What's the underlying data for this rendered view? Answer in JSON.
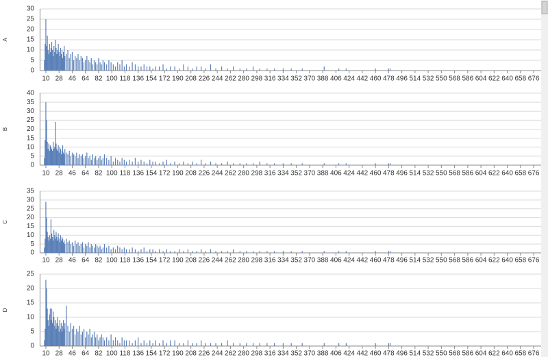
{
  "chart_data": [
    {
      "type": "bar",
      "ylabel": "A",
      "color": "#5b80b8",
      "grid": true,
      "xlim": [
        2,
        688
      ],
      "ylim": [
        0,
        30
      ],
      "yticks": [
        0,
        5,
        10,
        15,
        20,
        25,
        30
      ],
      "xticks": [
        10,
        28,
        46,
        64,
        82,
        100,
        118,
        136,
        154,
        172,
        190,
        208,
        226,
        244,
        262,
        280,
        298,
        316,
        334,
        352,
        370,
        388,
        406,
        424,
        442,
        460,
        478,
        496,
        514,
        532,
        550,
        568,
        586,
        604,
        622,
        640,
        658,
        676
      ],
      "x": [
        8,
        9,
        10,
        11,
        12,
        13,
        14,
        15,
        16,
        17,
        18,
        19,
        20,
        21,
        22,
        23,
        24,
        25,
        26,
        27,
        28,
        29,
        30,
        31,
        32,
        33,
        34,
        35,
        36,
        38,
        40,
        42,
        44,
        46,
        48,
        50,
        52,
        54,
        56,
        58,
        60,
        62,
        64,
        66,
        68,
        70,
        72,
        74,
        76,
        78,
        80,
        82,
        84,
        86,
        88,
        90,
        93,
        96,
        99,
        102,
        105,
        108,
        111,
        114,
        117,
        120,
        124,
        128,
        132,
        136,
        140,
        144,
        148,
        152,
        156,
        160,
        165,
        170,
        175,
        180,
        186,
        192,
        198,
        204,
        210,
        216,
        222,
        228,
        235,
        242,
        250,
        258,
        266,
        275,
        284,
        293,
        302,
        312,
        322,
        334,
        345,
        360,
        390,
        410,
        420,
        460,
        478,
        480
      ],
      "values": [
        5,
        13,
        25,
        12,
        17,
        10,
        8,
        13,
        9,
        11,
        14,
        10,
        7,
        12,
        9,
        15,
        11,
        8,
        10,
        13,
        9,
        7,
        11,
        8,
        10,
        6,
        9,
        12,
        7,
        8,
        10,
        6,
        8,
        9,
        5,
        7,
        6,
        8,
        5,
        7,
        6,
        4,
        5,
        7,
        5,
        4,
        6,
        3,
        5,
        4,
        3,
        6,
        4,
        3,
        5,
        4,
        3,
        5,
        4,
        3,
        2,
        4,
        3,
        5,
        2,
        3,
        2,
        4,
        3,
        2,
        2,
        3,
        2,
        2,
        1,
        2,
        2,
        3,
        1,
        2,
        2,
        1,
        3,
        2,
        1,
        2,
        2,
        1,
        3,
        1,
        2,
        1,
        2,
        1,
        1,
        2,
        1,
        1,
        1,
        1,
        1,
        1,
        2,
        1,
        1,
        1,
        1,
        1
      ]
    },
    {
      "type": "bar",
      "ylabel": "B",
      "color": "#5b80b8",
      "grid": true,
      "xlim": [
        2,
        688
      ],
      "ylim": [
        0,
        40
      ],
      "yticks": [
        0,
        5,
        10,
        15,
        20,
        25,
        30,
        35,
        40
      ],
      "xticks": [
        10,
        28,
        46,
        64,
        82,
        100,
        118,
        136,
        154,
        172,
        190,
        208,
        226,
        244,
        262,
        280,
        298,
        316,
        334,
        352,
        370,
        388,
        406,
        424,
        442,
        460,
        478,
        496,
        514,
        532,
        550,
        568,
        586,
        604,
        622,
        640,
        658,
        676
      ],
      "x": [
        8,
        9,
        10,
        11,
        12,
        13,
        14,
        15,
        16,
        17,
        18,
        19,
        20,
        21,
        22,
        23,
        24,
        25,
        26,
        27,
        28,
        29,
        30,
        31,
        32,
        33,
        34,
        35,
        36,
        38,
        40,
        42,
        44,
        46,
        48,
        50,
        52,
        54,
        56,
        58,
        60,
        62,
        64,
        66,
        68,
        70,
        72,
        74,
        76,
        78,
        80,
        82,
        84,
        86,
        88,
        90,
        93,
        96,
        99,
        102,
        105,
        108,
        111,
        114,
        117,
        120,
        124,
        128,
        132,
        136,
        140,
        144,
        148,
        152,
        156,
        160,
        165,
        170,
        175,
        180,
        186,
        192,
        198,
        204,
        210,
        216,
        222,
        228,
        235,
        242,
        250,
        258,
        266,
        275,
        284,
        293,
        302,
        312,
        322,
        334,
        345,
        360,
        390,
        410,
        420,
        460,
        478,
        480
      ],
      "values": [
        4,
        14,
        35,
        25,
        13,
        9,
        12,
        8,
        11,
        10,
        9,
        8,
        13,
        9,
        10,
        24,
        12,
        9,
        8,
        11,
        7,
        10,
        9,
        6,
        8,
        11,
        7,
        6,
        9,
        7,
        6,
        8,
        5,
        7,
        6,
        5,
        7,
        4,
        6,
        5,
        6,
        4,
        5,
        7,
        4,
        5,
        3,
        6,
        4,
        5,
        3,
        4,
        5,
        3,
        4,
        6,
        4,
        3,
        5,
        2,
        4,
        3,
        2,
        4,
        3,
        2,
        3,
        2,
        4,
        2,
        3,
        2,
        1,
        3,
        2,
        2,
        1,
        2,
        3,
        1,
        2,
        1,
        2,
        1,
        2,
        1,
        3,
        1,
        2,
        1,
        1,
        2,
        1,
        1,
        1,
        1,
        2,
        1,
        1,
        1,
        1,
        1,
        1,
        1,
        1,
        1,
        1,
        1
      ]
    },
    {
      "type": "bar",
      "ylabel": "C",
      "color": "#5b80b8",
      "grid": true,
      "xlim": [
        2,
        688
      ],
      "ylim": [
        0,
        35
      ],
      "yticks": [
        0,
        5,
        10,
        15,
        20,
        25,
        30,
        35
      ],
      "xticks": [
        10,
        28,
        46,
        64,
        82,
        100,
        118,
        136,
        154,
        172,
        190,
        208,
        226,
        244,
        262,
        280,
        298,
        316,
        334,
        352,
        370,
        388,
        406,
        424,
        442,
        460,
        478,
        496,
        514,
        532,
        550,
        568,
        586,
        604,
        622,
        640,
        658,
        676
      ],
      "x": [
        8,
        9,
        10,
        11,
        12,
        13,
        14,
        15,
        16,
        17,
        18,
        19,
        20,
        21,
        22,
        23,
        24,
        25,
        26,
        27,
        28,
        29,
        30,
        31,
        32,
        33,
        34,
        35,
        36,
        38,
        40,
        42,
        44,
        46,
        48,
        50,
        52,
        54,
        56,
        58,
        60,
        62,
        64,
        66,
        68,
        70,
        72,
        74,
        76,
        78,
        80,
        82,
        84,
        86,
        88,
        90,
        93,
        96,
        99,
        102,
        105,
        108,
        111,
        114,
        117,
        120,
        124,
        128,
        132,
        136,
        140,
        144,
        148,
        152,
        156,
        160,
        165,
        170,
        175,
        180,
        186,
        192,
        198,
        204,
        210,
        216,
        222,
        228,
        235,
        242,
        250,
        258,
        266,
        275,
        284,
        293,
        302,
        312,
        322,
        334,
        345,
        360,
        390,
        410,
        420,
        460,
        478,
        480
      ],
      "values": [
        3,
        8,
        29,
        20,
        12,
        9,
        7,
        10,
        8,
        19,
        11,
        9,
        7,
        13,
        10,
        8,
        12,
        9,
        7,
        11,
        8,
        6,
        10,
        7,
        9,
        8,
        6,
        7,
        5,
        8,
        6,
        7,
        5,
        6,
        4,
        7,
        5,
        6,
        4,
        5,
        6,
        3,
        5,
        4,
        6,
        3,
        5,
        4,
        3,
        5,
        4,
        3,
        4,
        2,
        3,
        5,
        3,
        4,
        2,
        3,
        2,
        4,
        3,
        2,
        3,
        2,
        2,
        3,
        2,
        1,
        2,
        3,
        1,
        2,
        2,
        1,
        2,
        1,
        2,
        1,
        1,
        2,
        1,
        2,
        1,
        1,
        2,
        1,
        2,
        1,
        1,
        1,
        2,
        1,
        1,
        1,
        1,
        1,
        1,
        1,
        1,
        1,
        1,
        1,
        1,
        1,
        1,
        1
      ]
    },
    {
      "type": "bar",
      "ylabel": "D",
      "color": "#5b80b8",
      "grid": true,
      "xlim": [
        2,
        688
      ],
      "ylim": [
        0,
        25
      ],
      "yticks": [
        0,
        5,
        10,
        15,
        20,
        25
      ],
      "xticks": [
        10,
        28,
        46,
        64,
        82,
        100,
        118,
        136,
        154,
        172,
        190,
        208,
        226,
        244,
        262,
        280,
        298,
        316,
        334,
        352,
        370,
        388,
        406,
        424,
        442,
        460,
        478,
        496,
        514,
        532,
        550,
        568,
        586,
        604,
        622,
        640,
        658,
        676
      ],
      "x": [
        8,
        9,
        10,
        11,
        12,
        13,
        14,
        15,
        16,
        17,
        18,
        19,
        20,
        21,
        22,
        23,
        24,
        25,
        26,
        27,
        28,
        29,
        30,
        31,
        32,
        33,
        34,
        35,
        36,
        38,
        40,
        42,
        44,
        46,
        48,
        50,
        52,
        54,
        56,
        58,
        60,
        62,
        64,
        66,
        68,
        70,
        72,
        74,
        76,
        78,
        80,
        82,
        84,
        86,
        88,
        90,
        93,
        96,
        99,
        102,
        105,
        108,
        111,
        114,
        117,
        120,
        124,
        128,
        132,
        136,
        140,
        144,
        148,
        152,
        156,
        160,
        165,
        170,
        175,
        180,
        186,
        192,
        198,
        204,
        210,
        216,
        222,
        228,
        235,
        242,
        250,
        258,
        266,
        275,
        284,
        293,
        302,
        312,
        322,
        334,
        345,
        360,
        390,
        410,
        420,
        460,
        478,
        480
      ],
      "values": [
        2,
        6,
        23,
        20,
        13,
        9,
        7,
        11,
        13,
        9,
        13,
        8,
        12,
        10,
        7,
        9,
        6,
        8,
        10,
        7,
        5,
        9,
        6,
        8,
        5,
        7,
        9,
        6,
        8,
        14,
        7,
        5,
        8,
        6,
        7,
        4,
        6,
        5,
        7,
        4,
        5,
        6,
        3,
        5,
        4,
        6,
        3,
        4,
        5,
        3,
        4,
        2,
        3,
        4,
        3,
        2,
        3,
        2,
        4,
        2,
        3,
        2,
        1,
        3,
        2,
        2,
        2,
        1,
        2,
        3,
        1,
        2,
        1,
        2,
        1,
        2,
        1,
        2,
        1,
        2,
        2,
        1,
        1,
        2,
        1,
        1,
        2,
        1,
        1,
        1,
        1,
        2,
        1,
        1,
        1,
        1,
        1,
        1,
        1,
        1,
        1,
        1,
        1,
        1,
        1,
        1,
        1,
        1
      ]
    }
  ]
}
